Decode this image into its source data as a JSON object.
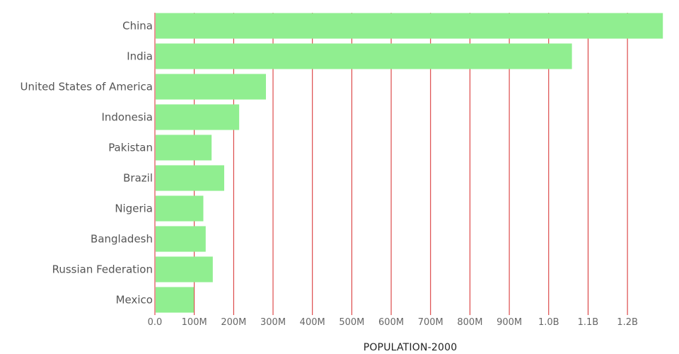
{
  "chart_data": {
    "type": "bar",
    "orientation": "horizontal",
    "title": "",
    "xlabel": "POPULATION-2000",
    "ylabel": "",
    "xlim": [
      0,
      1295000000
    ],
    "x_ticks": [
      0,
      100000000,
      200000000,
      300000000,
      400000000,
      500000000,
      600000000,
      700000000,
      800000000,
      900000000,
      1000000000,
      1100000000,
      1200000000
    ],
    "x_tick_labels": [
      "0.0",
      "100M",
      "200M",
      "300M",
      "400M",
      "500M",
      "600M",
      "700M",
      "800M",
      "900M",
      "1.0B",
      "1.1B",
      "1.2B"
    ],
    "categories": [
      "China",
      "India",
      "United States of America",
      "Indonesia",
      "Pakistan",
      "Brazil",
      "Nigeria",
      "Bangladesh",
      "Russian Federation",
      "Mexico"
    ],
    "values": [
      1290000000,
      1059000000,
      282000000,
      214000000,
      144000000,
      176000000,
      123000000,
      129000000,
      147000000,
      99000000
    ],
    "grid": true,
    "bar_color": "#90ee90",
    "grid_color": "#d62728",
    "legend": "none"
  }
}
